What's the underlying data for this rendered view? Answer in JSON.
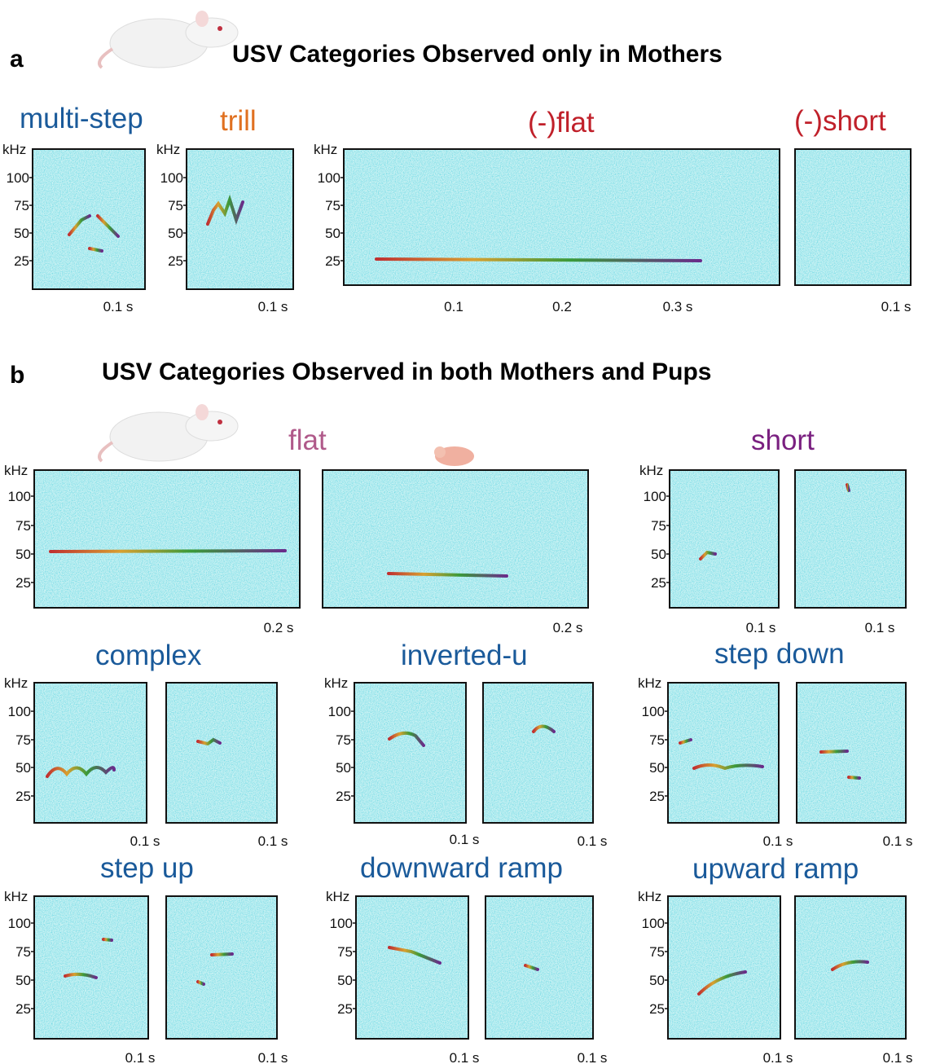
{
  "panel_a": {
    "letter": "a",
    "title": "USV Categories Observed only in Mothers",
    "labels": [
      "multi-step",
      "trill",
      "(-)flat",
      "(-)short"
    ],
    "plots": [
      {
        "unit": "kHz",
        "yticks": [
          "100",
          "75",
          "50",
          "25"
        ],
        "xticks": [
          "0.1 s"
        ]
      },
      {
        "unit": "kHz",
        "yticks": [
          "100",
          "75",
          "50",
          "25"
        ],
        "xticks": [
          "0.1 s"
        ]
      },
      {
        "unit": "kHz",
        "yticks": [
          "100",
          "75",
          "50",
          "25"
        ],
        "xticks": [
          "0.1",
          "0.2",
          "0.3 s"
        ]
      },
      {
        "xticks": [
          "0.1 s"
        ]
      }
    ]
  },
  "panel_b": {
    "letter": "b",
    "title": "USV Categories Observed in both Mothers and Pups",
    "labels": [
      "flat",
      "short",
      "complex",
      "inverted-u",
      "step down",
      "step up",
      "downward ramp",
      "upward ramp"
    ],
    "plots": [
      {
        "unit": "kHz",
        "yticks": [
          "100",
          "75",
          "50",
          "25"
        ],
        "xticks": [
          "0.2 s"
        ]
      },
      {
        "xticks": [
          "0.2 s"
        ]
      },
      {
        "unit": "kHz",
        "yticks": [
          "100",
          "75",
          "50",
          "25"
        ],
        "xticks": [
          "0.1 s"
        ]
      },
      {
        "xticks": [
          "0.1 s"
        ]
      },
      {
        "unit": "kHz",
        "yticks": [
          "100",
          "75",
          "50",
          "25"
        ],
        "xticks": [
          "0.1 s"
        ]
      },
      {
        "xticks": [
          "0.1 s"
        ]
      },
      {
        "unit": "kHz",
        "yticks": [
          "100",
          "75",
          "50",
          "25"
        ],
        "xticks": [
          "0.1 s"
        ]
      },
      {
        "xticks": [
          "0.1 s"
        ]
      },
      {
        "unit": "kHz",
        "yticks": [
          "100",
          "75",
          "50",
          "25"
        ],
        "xticks": [
          "0.1 s"
        ]
      },
      {
        "xticks": [
          "0.1 s"
        ]
      },
      {
        "unit": "kHz",
        "yticks": [
          "100",
          "75",
          "50",
          "25"
        ],
        "xticks": [
          "0.1 s"
        ]
      },
      {
        "xticks": [
          "0.1 s"
        ]
      },
      {
        "unit": "kHz",
        "yticks": [
          "100",
          "75",
          "50",
          "25"
        ],
        "xticks": [
          "0.1 s"
        ]
      },
      {
        "xticks": [
          "0.1 s"
        ]
      },
      {
        "unit": "kHz",
        "yticks": [
          "100",
          "75",
          "50",
          "25"
        ],
        "xticks": [
          "0.1 s"
        ]
      },
      {
        "xticks": [
          "0.1 s"
        ]
      }
    ]
  }
}
